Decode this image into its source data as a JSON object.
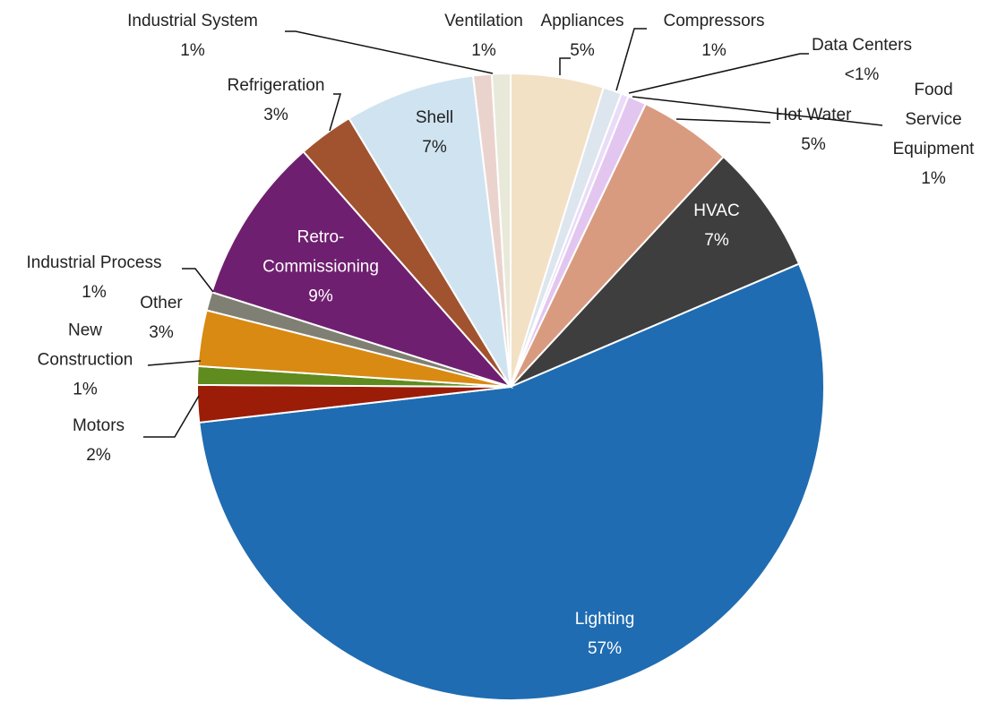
{
  "chart_data": {
    "type": "pie",
    "categories": [
      "Appliances",
      "Compressors",
      "Data Centers",
      "Food Service Equipment",
      "Hot Water",
      "HVAC",
      "Lighting",
      "Motors",
      "New Construction",
      "Other",
      "Industrial Process",
      "Retro-Commissioning",
      "Refrigeration",
      "Shell",
      "Industrial System",
      "Ventilation"
    ],
    "values": [
      5,
      1,
      0.4,
      1,
      5,
      7,
      57,
      2,
      1,
      3,
      1,
      9,
      3,
      7,
      1,
      1
    ],
    "value_labels": [
      "5%",
      "1%",
      "<1%",
      "1%",
      "5%",
      "7%",
      "57%",
      "2%",
      "1%",
      "3%",
      "1%",
      "9%",
      "3%",
      "7%",
      "1%",
      "1%"
    ],
    "colors": [
      "#f3e1c6",
      "#dde6ee",
      "#e9dcf7",
      "#e3c6f0",
      "#d99b80",
      "#3e3e3e",
      "#1f6cb2",
      "#9b1d08",
      "#5f8b1f",
      "#d98a12",
      "#7f7f73",
      "#6f1f70",
      "#a0532e",
      "#d0e3f1",
      "#ebd3cd",
      "#e9e9da"
    ]
  }
}
